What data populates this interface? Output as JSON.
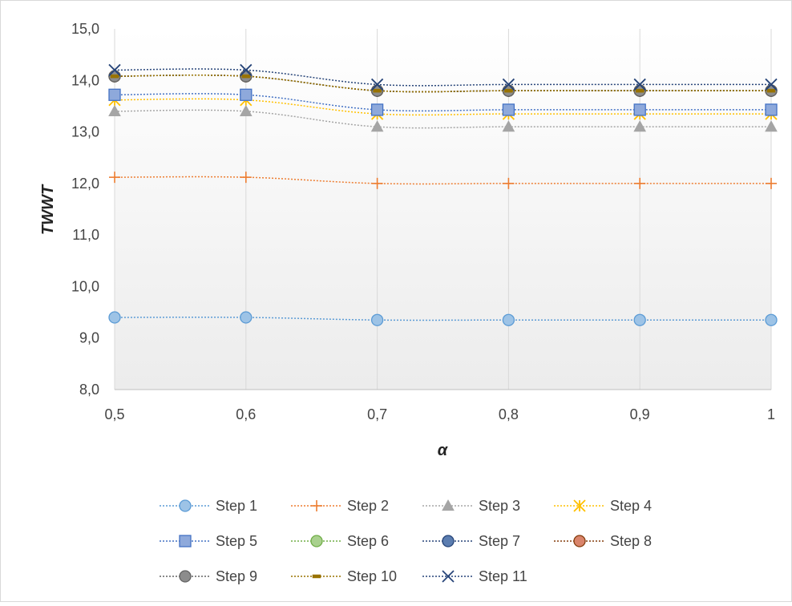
{
  "chart_data": {
    "type": "line",
    "title": "",
    "xlabel": "α",
    "ylabel": "TWWT",
    "x_tick_labels": [
      "0,5",
      "0,6",
      "0,7",
      "0,8",
      "0,9",
      "1"
    ],
    "x": [
      0.5,
      0.6,
      0.7,
      0.8,
      0.9,
      1.0
    ],
    "ylim": [
      8.0,
      15.0
    ],
    "y_tick_labels": [
      "8,0",
      "9,0",
      "10,0",
      "11,0",
      "12,0",
      "13,0",
      "14,0",
      "15,0"
    ],
    "y_ticks": [
      8,
      9,
      10,
      11,
      12,
      13,
      14,
      15
    ],
    "grid": "vertical",
    "legend_position": "bottom",
    "series": [
      {
        "name": "Step 1",
        "values": [
          9.4,
          9.4,
          9.35,
          9.35,
          9.35,
          9.35
        ],
        "color": "#5B9BD5",
        "marker": "circle",
        "marker_fill": "#9DC3E6"
      },
      {
        "name": "Step 2",
        "values": [
          12.12,
          12.12,
          12.0,
          12.0,
          12.0,
          12.0
        ],
        "color": "#ED7D31",
        "marker": "plus",
        "marker_fill": "#ED7D31"
      },
      {
        "name": "Step 3",
        "values": [
          13.4,
          13.4,
          13.1,
          13.1,
          13.1,
          13.1
        ],
        "color": "#A5A5A5",
        "marker": "triangle",
        "marker_fill": "#A5A5A5"
      },
      {
        "name": "Step 4",
        "values": [
          13.62,
          13.62,
          13.35,
          13.35,
          13.35,
          13.35
        ],
        "color": "#FFC000",
        "marker": "star",
        "marker_fill": "#FFC000"
      },
      {
        "name": "Step 5",
        "values": [
          13.72,
          13.72,
          13.43,
          13.43,
          13.43,
          13.43
        ],
        "color": "#4472C4",
        "marker": "square",
        "marker_fill": "#8EA9DB"
      },
      {
        "name": "Step 6",
        "values": [
          14.08,
          14.08,
          13.8,
          13.8,
          13.8,
          13.8
        ],
        "color": "#70AD47",
        "marker": "circle",
        "marker_fill": "#A9D18E"
      },
      {
        "name": "Step 7",
        "values": [
          14.08,
          14.08,
          13.8,
          13.8,
          13.8,
          13.8
        ],
        "color": "#264478",
        "marker": "circle",
        "marker_fill": "#5B7DB0"
      },
      {
        "name": "Step 8",
        "values": [
          14.08,
          14.08,
          13.8,
          13.8,
          13.8,
          13.8
        ],
        "color": "#843C0C",
        "marker": "circle",
        "marker_fill": "#D9846B"
      },
      {
        "name": "Step 9",
        "values": [
          14.08,
          14.08,
          13.8,
          13.8,
          13.8,
          13.8
        ],
        "color": "#636363",
        "marker": "circle",
        "marker_fill": "#8C8C8C"
      },
      {
        "name": "Step 10",
        "values": [
          14.08,
          14.08,
          13.8,
          13.8,
          13.8,
          13.8
        ],
        "color": "#997300",
        "marker": "dash",
        "marker_fill": "#997300"
      },
      {
        "name": "Step 11",
        "values": [
          14.2,
          14.2,
          13.92,
          13.92,
          13.92,
          13.92
        ],
        "color": "#264478",
        "marker": "x",
        "marker_fill": "#264478"
      }
    ]
  }
}
